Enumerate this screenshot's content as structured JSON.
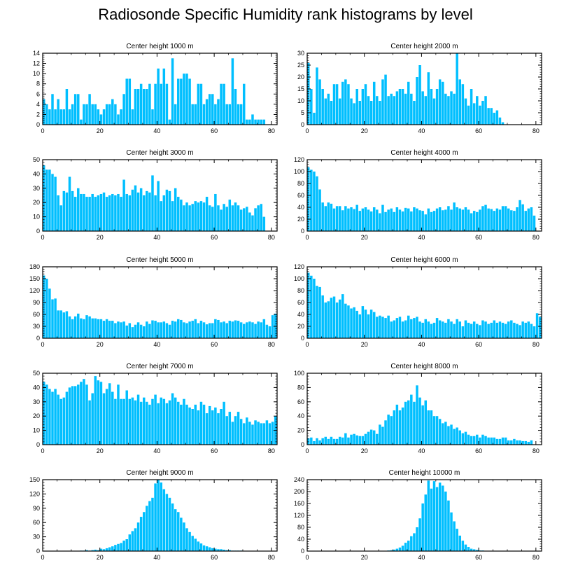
{
  "title": "Radiosonde Specific Humidity rank histograms by level",
  "colors": {
    "bar": "#00bfff",
    "bar_edge": "#ffffff",
    "axis": "#000000"
  },
  "chart_data": [
    {
      "type": "bar",
      "title": "Center height 1000 m",
      "xlabel": "",
      "ylabel": "",
      "xlim": [
        0,
        82
      ],
      "xticks": [
        0,
        20,
        40,
        60,
        80
      ],
      "ylim": [
        0,
        14
      ],
      "yticks": [
        0,
        2,
        4,
        6,
        8,
        10,
        12,
        14
      ],
      "values": [
        5,
        4,
        3,
        6,
        3,
        5,
        3,
        3,
        7,
        3,
        4,
        6,
        6,
        1,
        4,
        4,
        6,
        4,
        4,
        3,
        2,
        3,
        4,
        4,
        5,
        4,
        2,
        3,
        6,
        9,
        9,
        3,
        7,
        7,
        8,
        7,
        7,
        8,
        3,
        8,
        11,
        8,
        11,
        8,
        1,
        13,
        4,
        9,
        9,
        10,
        10,
        9,
        4,
        4,
        8,
        8,
        4,
        5,
        6,
        6,
        4,
        5,
        8,
        8,
        4,
        4,
        13,
        7,
        4,
        4,
        8,
        1,
        1,
        2,
        1,
        1,
        1,
        1,
        0,
        0,
        0,
        0
      ]
    },
    {
      "type": "bar",
      "title": "Center height 2000 m",
      "xlabel": "",
      "ylabel": "",
      "xlim": [
        0,
        82
      ],
      "xticks": [
        0,
        20,
        40,
        60,
        80
      ],
      "ylim": [
        0,
        30
      ],
      "yticks": [
        0,
        5,
        10,
        15,
        20,
        25,
        30
      ],
      "values": [
        26,
        15,
        5,
        24,
        19,
        15,
        11,
        13,
        10,
        17,
        17,
        11,
        18,
        19,
        17,
        11,
        9,
        15,
        10,
        15,
        17,
        12,
        10,
        18,
        12,
        10,
        19,
        21,
        12,
        13,
        12,
        14,
        15,
        15,
        13,
        18,
        13,
        10,
        20,
        25,
        14,
        12,
        22,
        15,
        11,
        15,
        19,
        18,
        13,
        12,
        14,
        13,
        30,
        19,
        17,
        11,
        8,
        15,
        9,
        12,
        8,
        10,
        12,
        7,
        7,
        5,
        6,
        3,
        1,
        0,
        0,
        0,
        0,
        0,
        0,
        0,
        0,
        0,
        0,
        0,
        0,
        0
      ]
    },
    {
      "type": "bar",
      "title": "Center height 3000 m",
      "xlabel": "",
      "ylabel": "",
      "xlim": [
        0,
        82
      ],
      "xticks": [
        0,
        20,
        40,
        60,
        80
      ],
      "ylim": [
        0,
        50
      ],
      "yticks": [
        0,
        10,
        20,
        30,
        40,
        50
      ],
      "values": [
        46,
        43,
        43,
        40,
        38,
        25,
        18,
        28,
        27,
        38,
        28,
        24,
        30,
        26,
        26,
        24,
        24,
        26,
        24,
        25,
        26,
        27,
        24,
        25,
        26,
        25,
        26,
        24,
        36,
        26,
        25,
        29,
        32,
        27,
        30,
        25,
        28,
        27,
        39,
        25,
        35,
        21,
        25,
        29,
        28,
        21,
        30,
        24,
        22,
        18,
        20,
        18,
        19,
        21,
        20,
        21,
        20,
        24,
        18,
        17,
        26,
        18,
        15,
        19,
        17,
        22,
        18,
        20,
        18,
        15,
        16,
        17,
        13,
        11,
        16,
        18,
        19,
        10,
        0,
        0,
        0,
        0
      ]
    },
    {
      "type": "bar",
      "title": "Center height 4000 m",
      "xlabel": "",
      "ylabel": "",
      "xlim": [
        0,
        82
      ],
      "xticks": [
        0,
        20,
        40,
        60,
        80
      ],
      "ylim": [
        0,
        120
      ],
      "yticks": [
        0,
        20,
        40,
        60,
        80,
        100,
        120
      ],
      "values": [
        107,
        103,
        100,
        92,
        70,
        48,
        42,
        48,
        46,
        38,
        42,
        42,
        35,
        42,
        38,
        40,
        37,
        44,
        34,
        38,
        40,
        36,
        33,
        40,
        36,
        30,
        44,
        32,
        36,
        38,
        32,
        40,
        36,
        33,
        39,
        38,
        33,
        40,
        38,
        35,
        34,
        28,
        38,
        32,
        34,
        38,
        40,
        35,
        36,
        42,
        36,
        48,
        40,
        38,
        36,
        40,
        36,
        30,
        34,
        32,
        36,
        42,
        44,
        38,
        37,
        34,
        38,
        36,
        42,
        42,
        38,
        35,
        34,
        40,
        52,
        45,
        34,
        38,
        40,
        26,
        0,
        0
      ]
    },
    {
      "type": "bar",
      "title": "Center height 5000 m",
      "xlabel": "",
      "ylabel": "",
      "xlim": [
        0,
        82
      ],
      "xticks": [
        0,
        20,
        40,
        60,
        80
      ],
      "ylim": [
        0,
        180
      ],
      "yticks": [
        0,
        30,
        60,
        90,
        120,
        150,
        180
      ],
      "values": [
        158,
        150,
        125,
        98,
        100,
        70,
        70,
        65,
        68,
        55,
        48,
        55,
        62,
        50,
        48,
        58,
        55,
        50,
        50,
        48,
        48,
        44,
        48,
        44,
        44,
        38,
        42,
        40,
        42,
        32,
        38,
        28,
        34,
        40,
        34,
        30,
        42,
        36,
        45,
        44,
        40,
        40,
        42,
        38,
        34,
        44,
        42,
        48,
        46,
        40,
        38,
        42,
        44,
        48,
        38,
        44,
        40,
        35,
        38,
        38,
        48,
        46,
        40,
        42,
        38,
        44,
        42,
        45,
        44,
        40,
        36,
        40,
        42,
        40,
        36,
        42,
        40,
        48,
        34,
        30,
        58,
        62
      ]
    },
    {
      "type": "bar",
      "title": "Center height 6000 m",
      "xlabel": "",
      "ylabel": "",
      "xlim": [
        0,
        82
      ],
      "xticks": [
        0,
        20,
        40,
        60,
        80
      ],
      "ylim": [
        0,
        120
      ],
      "yticks": [
        0,
        20,
        40,
        60,
        80,
        100,
        120
      ],
      "values": [
        110,
        105,
        100,
        88,
        86,
        72,
        60,
        62,
        68,
        70,
        60,
        65,
        74,
        58,
        55,
        50,
        52,
        46,
        40,
        54,
        48,
        40,
        48,
        44,
        36,
        38,
        36,
        34,
        38,
        28,
        30,
        34,
        36,
        28,
        30,
        38,
        32,
        34,
        36,
        28,
        26,
        32,
        28,
        24,
        26,
        34,
        30,
        28,
        26,
        32,
        28,
        24,
        32,
        28,
        20,
        30,
        26,
        24,
        28,
        24,
        22,
        30,
        28,
        24,
        26,
        30,
        26,
        28,
        26,
        24,
        28,
        30,
        26,
        24,
        22,
        28,
        26,
        28,
        24,
        20,
        42,
        36
      ]
    },
    {
      "type": "bar",
      "title": "Center height 7000 m",
      "xlabel": "",
      "ylabel": "",
      "xlim": [
        0,
        82
      ],
      "xticks": [
        0,
        20,
        40,
        60,
        80
      ],
      "ylim": [
        0,
        50
      ],
      "yticks": [
        0,
        10,
        20,
        30,
        40,
        50
      ],
      "values": [
        44,
        42,
        39,
        37,
        39,
        35,
        32,
        33,
        37,
        40,
        41,
        41,
        42,
        44,
        46,
        42,
        31,
        36,
        48,
        45,
        44,
        36,
        39,
        43,
        37,
        32,
        42,
        32,
        32,
        38,
        32,
        33,
        31,
        35,
        30,
        33,
        30,
        28,
        32,
        35,
        29,
        33,
        32,
        29,
        31,
        36,
        33,
        30,
        28,
        32,
        28,
        26,
        25,
        28,
        24,
        30,
        28,
        22,
        27,
        24,
        26,
        22,
        25,
        30,
        20,
        23,
        16,
        20,
        23,
        18,
        15,
        19,
        16,
        14,
        17,
        16,
        15,
        15,
        17,
        15,
        16,
        20
      ]
    },
    {
      "type": "bar",
      "title": "Center height 8000 m",
      "xlabel": "",
      "ylabel": "",
      "xlim": [
        0,
        82
      ],
      "xticks": [
        0,
        20,
        40,
        60,
        80
      ],
      "ylim": [
        0,
        100
      ],
      "yticks": [
        0,
        20,
        40,
        60,
        80,
        100
      ],
      "values": [
        9,
        10,
        5,
        9,
        6,
        9,
        11,
        8,
        11,
        8,
        8,
        11,
        10,
        16,
        10,
        14,
        15,
        13,
        12,
        12,
        15,
        18,
        21,
        20,
        15,
        28,
        25,
        34,
        42,
        40,
        48,
        56,
        48,
        52,
        60,
        62,
        70,
        60,
        83,
        66,
        55,
        62,
        48,
        48,
        40,
        40,
        36,
        30,
        32,
        26,
        28,
        22,
        24,
        20,
        16,
        18,
        14,
        12,
        12,
        14,
        10,
        14,
        12,
        10,
        10,
        10,
        8,
        8,
        10,
        10,
        6,
        6,
        8,
        6,
        6,
        5,
        5,
        4,
        6,
        0,
        0,
        0
      ]
    },
    {
      "type": "bar",
      "title": "Center height 9000 m",
      "xlabel": "",
      "ylabel": "",
      "xlim": [
        0,
        82
      ],
      "xticks": [
        0,
        20,
        40,
        60,
        80
      ],
      "ylim": [
        0,
        150
      ],
      "yticks": [
        0,
        30,
        60,
        90,
        120,
        150
      ],
      "values": [
        0,
        0,
        0,
        0,
        0,
        0,
        0,
        0,
        0,
        0,
        0,
        0,
        0,
        1,
        1,
        2,
        1,
        2,
        3,
        2,
        5,
        4,
        6,
        8,
        10,
        13,
        15,
        17,
        22,
        25,
        35,
        42,
        48,
        60,
        72,
        82,
        95,
        105,
        112,
        142,
        150,
        144,
        130,
        120,
        112,
        100,
        88,
        82,
        70,
        60,
        48,
        40,
        32,
        26,
        20,
        16,
        12,
        10,
        8,
        6,
        5,
        4,
        4,
        3,
        2,
        2,
        1,
        1,
        1,
        1,
        0,
        0,
        0,
        0,
        0,
        0,
        0,
        0,
        0,
        0,
        0,
        0
      ]
    },
    {
      "type": "bar",
      "title": "Center height 10000 m",
      "xlabel": "",
      "ylabel": "",
      "xlim": [
        0,
        82
      ],
      "xticks": [
        0,
        20,
        40,
        60,
        80
      ],
      "ylim": [
        0,
        240
      ],
      "yticks": [
        0,
        40,
        80,
        120,
        160,
        200,
        240
      ],
      "values": [
        0,
        0,
        0,
        0,
        0,
        0,
        0,
        0,
        0,
        0,
        0,
        0,
        0,
        0,
        0,
        0,
        0,
        0,
        0,
        0,
        0,
        0,
        0,
        0,
        0,
        0,
        0,
        1,
        2,
        3,
        5,
        8,
        12,
        18,
        28,
        35,
        50,
        60,
        80,
        110,
        160,
        190,
        237,
        210,
        235,
        215,
        230,
        220,
        200,
        170,
        130,
        100,
        75,
        52,
        35,
        22,
        14,
        8,
        6,
        4,
        2,
        2,
        1,
        1,
        0,
        0,
        0,
        0,
        0,
        0,
        0,
        0,
        0,
        0,
        0,
        0,
        0,
        0,
        0,
        0,
        0,
        0
      ]
    }
  ]
}
